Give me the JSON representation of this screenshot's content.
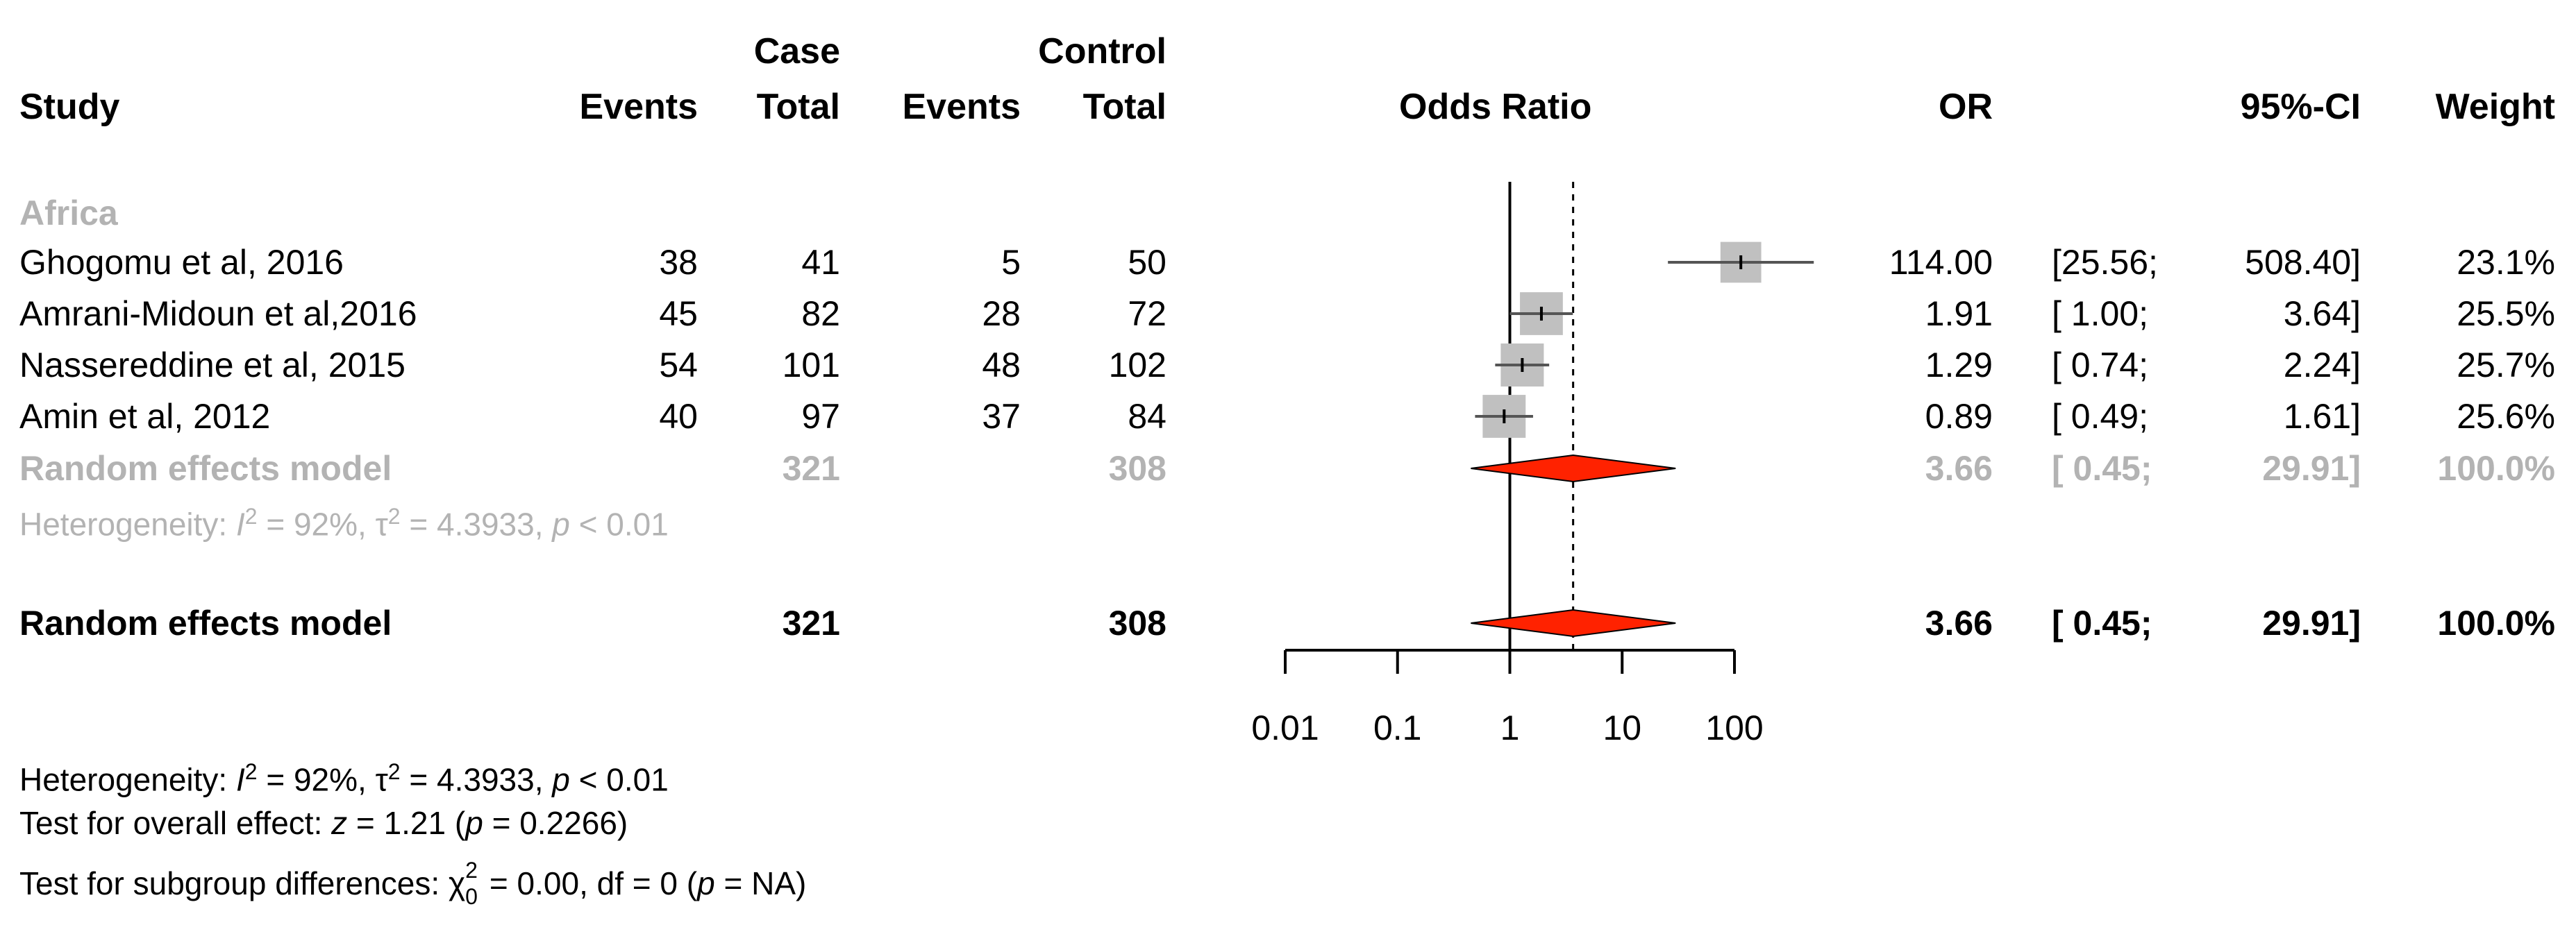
{
  "headers": {
    "study": "Study",
    "case_group": "Case",
    "control_group": "Control",
    "case_events": "Events",
    "case_total": "Total",
    "control_events": "Events",
    "control_total": "Total",
    "odds_ratio": "Odds Ratio",
    "or": "OR",
    "ci": "95%-CI",
    "weight": "Weight"
  },
  "subgroup_label": "Africa",
  "studies": [
    {
      "name": "Ghogomu et al, 2016",
      "case_events": "38",
      "case_total": "41",
      "control_events": "5",
      "control_total": "50",
      "or": "114.00",
      "ci_low": "[25.56;",
      "ci_high": "508.40]",
      "weight": "23.1%"
    },
    {
      "name": "Amrani-Midoun et al,2016",
      "case_events": "45",
      "case_total": "82",
      "control_events": "28",
      "control_total": "72",
      "or": "1.91",
      "ci_low": "[ 1.00;",
      "ci_high": "3.64]",
      "weight": "25.5%"
    },
    {
      "name": "Nassereddine et al, 2015",
      "case_events": "54",
      "case_total": "101",
      "control_events": "48",
      "control_total": "102",
      "or": "1.29",
      "ci_low": "[ 0.74;",
      "ci_high": "2.24]",
      "weight": "25.7%"
    },
    {
      "name": "Amin et al, 2012",
      "case_events": "40",
      "case_total": "97",
      "control_events": "37",
      "control_total": "84",
      "or": "0.89",
      "ci_low": "[ 0.49;",
      "ci_high": "1.61]",
      "weight": "25.6%"
    }
  ],
  "subgroup_model": {
    "label": "Random effects model",
    "case_total": "321",
    "control_total": "308",
    "or": "3.66",
    "ci_low": "[ 0.45;",
    "ci_high": "29.91]",
    "weight": "100.0%"
  },
  "subgroup_het": {
    "prefix": "Heterogeneity: ",
    "i2": "I",
    "i2_rest": " = 92%, ",
    "tau": "τ",
    "tau_rest": " = 4.3933, ",
    "p": "p",
    "p_rest": " < 0.01",
    "sup": "2"
  },
  "overall_model": {
    "label": "Random effects model",
    "case_total": "321",
    "control_total": "308",
    "or": "3.66",
    "ci_low": "[ 0.45;",
    "ci_high": "29.91]",
    "weight": "100.0%"
  },
  "footer": {
    "het_prefix": "Heterogeneity: ",
    "het_i": "I",
    "het_i_rest": " = 92%, ",
    "het_tau": "τ",
    "het_tau_rest": " = 4.3933, ",
    "het_p": "p",
    "het_p_rest": " < 0.01",
    "sup": "2",
    "overall_prefix": "Test for overall effect: ",
    "overall_z": "z",
    "overall_mid": " = 1.21 (",
    "overall_p": "p",
    "overall_rest": " = 0.2266)",
    "sub_prefix": "Test for subgroup differences: ",
    "sub_chi": "χ",
    "sub_sup": "2",
    "sub_sub": "0",
    "sub_mid": " = 0.00, df = 0 (",
    "sub_p": "p",
    "sub_rest": " = NA)"
  },
  "chart_data": {
    "type": "forest",
    "title": "Odds Ratio",
    "xscale": "log",
    "xlim": [
      0.01,
      100
    ],
    "xticks": [
      0.01,
      0.1,
      1,
      10,
      100
    ],
    "xtick_labels": [
      "0.01",
      "0.1",
      "1",
      "10",
      "100"
    ],
    "null_line": 1,
    "studies": [
      {
        "name": "Ghogomu et al, 2016",
        "or": 114.0,
        "lo": 25.56,
        "hi": 508.4,
        "weight": 23.1
      },
      {
        "name": "Amrani-Midoun et al,2016",
        "or": 1.91,
        "lo": 1.0,
        "hi": 3.64,
        "weight": 25.5
      },
      {
        "name": "Nassereddine et al, 2015",
        "or": 1.29,
        "lo": 0.74,
        "hi": 2.24,
        "weight": 25.7
      },
      {
        "name": "Amin et al, 2012",
        "or": 0.89,
        "lo": 0.49,
        "hi": 1.61,
        "weight": 25.6
      }
    ],
    "subgroup_summary": {
      "or": 3.66,
      "lo": 0.45,
      "hi": 29.91
    },
    "overall_summary": {
      "or": 3.66,
      "lo": 0.45,
      "hi": 29.91
    },
    "colors": {
      "square": "#c0c0c0",
      "diamond": "#ff2200",
      "diamond_stroke": "#000000"
    }
  }
}
